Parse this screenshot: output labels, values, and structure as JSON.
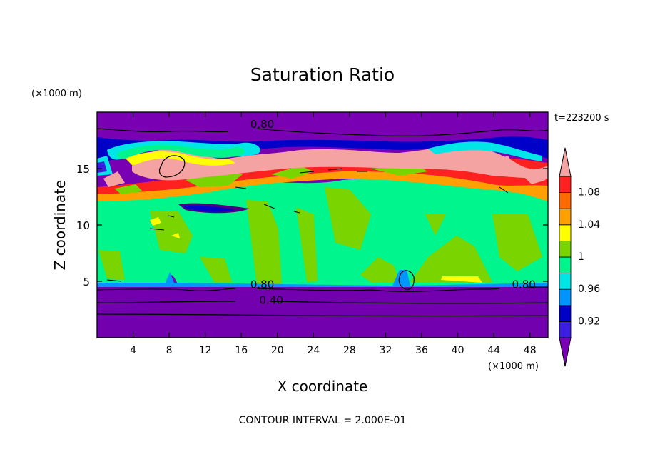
{
  "chart_data": {
    "type": "heatmap",
    "title": "Saturation Ratio",
    "xlabel": "X coordinate",
    "ylabel": "Z coordinate",
    "x_unit": "(×1000 m)",
    "y_unit": "(×1000 m)",
    "time_label": "t=223200 s",
    "footer": "CONTOUR INTERVAL = 2.000E-01",
    "xlim": [
      0,
      50
    ],
    "ylim": [
      0,
      20
    ],
    "x_ticks": [
      "4",
      "8",
      "12",
      "16",
      "20",
      "24",
      "28",
      "32",
      "36",
      "40",
      "44",
      "48"
    ],
    "x_tick_values": [
      4,
      8,
      12,
      16,
      20,
      24,
      28,
      32,
      36,
      40,
      44,
      48
    ],
    "y_ticks": [
      "5",
      "10",
      "15"
    ],
    "y_tick_values": [
      5,
      10,
      15
    ],
    "colorbar": {
      "labels": [
        "0.92",
        "0.96",
        "1",
        "1.04",
        "1.08"
      ],
      "label_values": [
        0.92,
        0.96,
        1.0,
        1.04,
        1.08
      ],
      "levels": [
        0.9,
        0.92,
        0.94,
        0.96,
        0.98,
        1.0,
        1.02,
        1.04,
        1.06,
        1.08,
        1.1
      ],
      "colors": [
        "#7a00b4",
        "#3c1ee0",
        "#0000c8",
        "#0096ff",
        "#00e6e6",
        "#00f58c",
        "#7ad400",
        "#ffff00",
        "#ffa000",
        "#ff6a00",
        "#ff2020",
        "#f4a2a2"
      ]
    },
    "contours": [
      {
        "label": "0.80",
        "at_x": [
          17,
          35,
          46
        ]
      },
      {
        "label": "0.40",
        "at_x": [
          18
        ]
      }
    ],
    "regions": [
      {
        "z": [
          0,
          4.8
        ],
        "value": 0.5,
        "description_color": "#7a00b4"
      },
      {
        "z": [
          4.8,
          12
        ],
        "value": 1.01
      },
      {
        "z": [
          12,
          17
        ],
        "value": 1.1
      },
      {
        "z": [
          17,
          20
        ],
        "value": 0.8
      }
    ]
  }
}
